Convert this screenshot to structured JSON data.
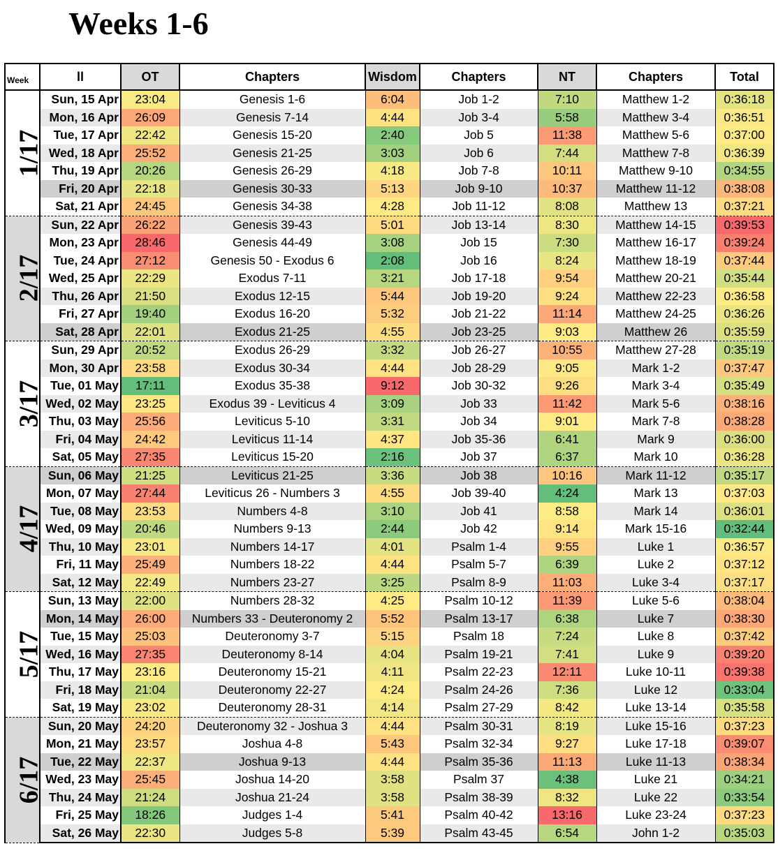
{
  "title": "Weeks 1-6",
  "headers": {
    "week": "Week",
    "day": "ll",
    "ot": "OT",
    "ot_chapters": "Chapters",
    "wisdom": "Wisdom",
    "wisdom_chapters": "Chapters",
    "nt": "NT",
    "nt_chapters": "Chapters",
    "total": "Total"
  },
  "colors": {
    "header_gray": "#d9d9d9",
    "row_shade_light": "#e9e9e9",
    "row_shade_dark": "#cfcfcf",
    "scale_green": "#63be7b",
    "scale_yellow": "#ffeb84",
    "scale_red": "#f8696b"
  },
  "weeks": [
    {
      "label": "1/17",
      "rows": [
        {
          "day": "Sun, 15 Apr",
          "ot": "23:04",
          "ot_ch": "Genesis 1-6",
          "wis": "6:04",
          "wis_ch": "Job 1-2",
          "nt": "7:10",
          "nt_ch": "Matthew 1-2",
          "total": "0:36:18",
          "shade": 0
        },
        {
          "day": "Mon, 16 Apr",
          "ot": "26:09",
          "ot_ch": "Genesis 7-14",
          "wis": "4:44",
          "wis_ch": "Job 3-4",
          "nt": "5:58",
          "nt_ch": "Matthew 3-4",
          "total": "0:36:51",
          "shade": 1
        },
        {
          "day": "Tue, 17 Apr",
          "ot": "22:42",
          "ot_ch": "Genesis 15-20",
          "wis": "2:40",
          "wis_ch": "Job 5",
          "nt": "11:38",
          "nt_ch": "Matthew 5-6",
          "total": "0:37:00",
          "shade": 0
        },
        {
          "day": "Wed, 18 Apr",
          "ot": "25:52",
          "ot_ch": "Genesis 21-25",
          "wis": "3:03",
          "wis_ch": "Job 6",
          "nt": "7:44",
          "nt_ch": "Matthew 7-8",
          "total": "0:36:39",
          "shade": 1
        },
        {
          "day": "Thu, 19 Apr",
          "ot": "20:26",
          "ot_ch": "Genesis 26-29",
          "wis": "4:18",
          "wis_ch": "Job 7-8",
          "nt": "10:11",
          "nt_ch": "Matthew 9-10",
          "total": "0:34:55",
          "shade": 0
        },
        {
          "day": "Fri, 20 Apr",
          "ot": "22:18",
          "ot_ch": "Genesis 30-33",
          "wis": "5:13",
          "wis_ch": "Job 9-10",
          "nt": "10:37",
          "nt_ch": "Matthew 11-12",
          "total": "0:38:08",
          "shade": 2
        },
        {
          "day": "Sat, 21 Apr",
          "ot": "24:45",
          "ot_ch": "Genesis 34-38",
          "wis": "4:28",
          "wis_ch": "Job 11-12",
          "nt": "8:08",
          "nt_ch": "Matthew 13",
          "total": "0:37:21",
          "shade": 0
        }
      ]
    },
    {
      "label": "2/17",
      "rows": [
        {
          "day": "Sun, 22 Apr",
          "ot": "26:22",
          "ot_ch": "Genesis 39-43",
          "wis": "5:01",
          "wis_ch": "Job 13-14",
          "nt": "8:30",
          "nt_ch": "Matthew 14-15",
          "total": "0:39:53",
          "shade": 1
        },
        {
          "day": "Mon, 23 Apr",
          "ot": "28:46",
          "ot_ch": "Genesis 44-49",
          "wis": "3:08",
          "wis_ch": "Job 15",
          "nt": "7:30",
          "nt_ch": "Matthew 16-17",
          "total": "0:39:24",
          "shade": 0
        },
        {
          "day": "Tue, 24 Apr",
          "ot": "27:12",
          "ot_ch": "Genesis 50 - Exodus 6",
          "wis": "2:08",
          "wis_ch": "Job 16",
          "nt": "8:24",
          "nt_ch": "Matthew 18-19",
          "total": "0:37:44",
          "shade": 0
        },
        {
          "day": "Wed, 25 Apr",
          "ot": "22:29",
          "ot_ch": "Exodus 7-11",
          "wis": "3:21",
          "wis_ch": "Job 17-18",
          "nt": "9:54",
          "nt_ch": "Matthew 20-21",
          "total": "0:35:44",
          "shade": 0
        },
        {
          "day": "Thu, 26 Apr",
          "ot": "21:50",
          "ot_ch": "Exodus 12-15",
          "wis": "5:44",
          "wis_ch": "Job 19-20",
          "nt": "9:24",
          "nt_ch": "Matthew 22-23",
          "total": "0:36:58",
          "shade": 1
        },
        {
          "day": "Fri, 27 Apr",
          "ot": "19:40",
          "ot_ch": "Exodus 16-20",
          "wis": "5:32",
          "wis_ch": "Job 21-22",
          "nt": "11:14",
          "nt_ch": "Matthew 24-25",
          "total": "0:36:26",
          "shade": 0
        },
        {
          "day": "Sat, 28 Apr",
          "ot": "22:01",
          "ot_ch": "Exodus 21-25",
          "wis": "4:55",
          "wis_ch": "Job 23-25",
          "nt": "9:03",
          "nt_ch": "Matthew 26",
          "total": "0:35:59",
          "shade": 2
        }
      ]
    },
    {
      "label": "3/17",
      "rows": [
        {
          "day": "Sun, 29 Apr",
          "ot": "20:52",
          "ot_ch": "Exodus 26-29",
          "wis": "3:32",
          "wis_ch": "Job 26-27",
          "nt": "10:55",
          "nt_ch": "Matthew 27-28",
          "total": "0:35:19",
          "shade": 0
        },
        {
          "day": "Mon, 30 Apr",
          "ot": "23:58",
          "ot_ch": "Exodus 30-34",
          "wis": "4:44",
          "wis_ch": "Job 28-29",
          "nt": "9:05",
          "nt_ch": "Mark 1-2",
          "total": "0:37:47",
          "shade": 1
        },
        {
          "day": "Tue, 01 May",
          "ot": "17:11",
          "ot_ch": "Exodus 35-38",
          "wis": "9:12",
          "wis_ch": "Job 30-32",
          "nt": "9:26",
          "nt_ch": "Mark 3-4",
          "total": "0:35:49",
          "shade": 0
        },
        {
          "day": "Wed, 02 May",
          "ot": "23:25",
          "ot_ch": "Exodus 39 - Leviticus 4",
          "wis": "3:09",
          "wis_ch": "Job 33",
          "nt": "11:42",
          "nt_ch": "Mark 5-6",
          "total": "0:38:16",
          "shade": 1
        },
        {
          "day": "Thu, 03 May",
          "ot": "25:56",
          "ot_ch": "Leviticus 5-10",
          "wis": "3:31",
          "wis_ch": "Job 34",
          "nt": "9:01",
          "nt_ch": "Mark 7-8",
          "total": "0:38:28",
          "shade": 0
        },
        {
          "day": "Fri, 04 May",
          "ot": "24:42",
          "ot_ch": "Leviticus 11-14",
          "wis": "4:37",
          "wis_ch": "Job 35-36",
          "nt": "6:41",
          "nt_ch": "Mark 9",
          "total": "0:36:00",
          "shade": 1
        },
        {
          "day": "Sat, 05 May",
          "ot": "27:35",
          "ot_ch": "Leviticus 15-20",
          "wis": "2:16",
          "wis_ch": "Job 37",
          "nt": "6:37",
          "nt_ch": "Mark 10",
          "total": "0:36:28",
          "shade": 0
        }
      ]
    },
    {
      "label": "4/17",
      "rows": [
        {
          "day": "Sun, 06 May",
          "ot": "21:25",
          "ot_ch": "Leviticus 21-25",
          "wis": "3:36",
          "wis_ch": "Job 38",
          "nt": "10:16",
          "nt_ch": "Mark 11-12",
          "total": "0:35:17",
          "shade": 2
        },
        {
          "day": "Mon, 07 May",
          "ot": "27:44",
          "ot_ch": "Leviticus 26 - Numbers 3",
          "wis": "4:55",
          "wis_ch": "Job 39-40",
          "nt": "4:24",
          "nt_ch": "Mark 13",
          "total": "0:37:03",
          "shade": 0
        },
        {
          "day": "Tue, 08 May",
          "ot": "23:53",
          "ot_ch": "Numbers 4-8",
          "wis": "3:10",
          "wis_ch": "Job 41",
          "nt": "8:58",
          "nt_ch": "Mark 14",
          "total": "0:36:01",
          "shade": 1
        },
        {
          "day": "Wed, 09 May",
          "ot": "20:46",
          "ot_ch": "Numbers 9-13",
          "wis": "2:44",
          "wis_ch": "Job 42",
          "nt": "9:14",
          "nt_ch": "Mark 15-16",
          "total": "0:32:44",
          "shade": 0
        },
        {
          "day": "Thu, 10 May",
          "ot": "23:01",
          "ot_ch": "Numbers 14-17",
          "wis": "4:01",
          "wis_ch": "Psalm 1-4",
          "nt": "9:55",
          "nt_ch": "Luke 1",
          "total": "0:36:57",
          "shade": 1
        },
        {
          "day": "Fri, 11 May",
          "ot": "25:49",
          "ot_ch": "Numbers 18-22",
          "wis": "4:44",
          "wis_ch": "Psalm 5-7",
          "nt": "6:39",
          "nt_ch": "Luke 2",
          "total": "0:37:12",
          "shade": 0
        },
        {
          "day": "Sat, 12 May",
          "ot": "22:49",
          "ot_ch": "Numbers 23-27",
          "wis": "3:25",
          "wis_ch": "Psalm 8-9",
          "nt": "11:03",
          "nt_ch": "Luke 3-4",
          "total": "0:37:17",
          "shade": 1
        }
      ]
    },
    {
      "label": "5/17",
      "rows": [
        {
          "day": "Sun, 13 May",
          "ot": "22:00",
          "ot_ch": "Numbers 28-32",
          "wis": "4:25",
          "wis_ch": "Psalm 10-12",
          "nt": "11:39",
          "nt_ch": "Luke 5-6",
          "total": "0:38:04",
          "shade": 0
        },
        {
          "day": "Mon, 14 May",
          "ot": "26:00",
          "ot_ch": "Numbers 33 - Deuteronomy 2",
          "wis": "5:52",
          "wis_ch": "Psalm 13-17",
          "nt": "6:38",
          "nt_ch": "Luke 7",
          "total": "0:38:30",
          "shade": 2
        },
        {
          "day": "Tue, 15 May",
          "ot": "25:03",
          "ot_ch": "Deuteronomy 3-7",
          "wis": "5:15",
          "wis_ch": "Psalm 18",
          "nt": "7:24",
          "nt_ch": "Luke 8",
          "total": "0:37:42",
          "shade": 0
        },
        {
          "day": "Wed, 16 May",
          "ot": "27:35",
          "ot_ch": "Deuteronomy 8-14",
          "wis": "4:04",
          "wis_ch": "Psalm 19-21",
          "nt": "7:41",
          "nt_ch": "Luke 9",
          "total": "0:39:20",
          "shade": 1
        },
        {
          "day": "Thu, 17 May",
          "ot": "23:16",
          "ot_ch": "Deuteronomy 15-21",
          "wis": "4:11",
          "wis_ch": "Psalm 22-23",
          "nt": "12:11",
          "nt_ch": "Luke 10-11",
          "total": "0:39:38",
          "shade": 0
        },
        {
          "day": "Fri, 18 May",
          "ot": "21:04",
          "ot_ch": "Deuteronomy 22-27",
          "wis": "4:24",
          "wis_ch": "Psalm 24-26",
          "nt": "7:36",
          "nt_ch": "Luke 12",
          "total": "0:33:04",
          "shade": 1
        },
        {
          "day": "Sat, 19 May",
          "ot": "23:02",
          "ot_ch": "Deuteronomy 28-31",
          "wis": "4:14",
          "wis_ch": "Psalm 27-29",
          "nt": "8:42",
          "nt_ch": "Luke 13-14",
          "total": "0:35:58",
          "shade": 0
        }
      ]
    },
    {
      "label": "6/17",
      "rows": [
        {
          "day": "Sun, 20 May",
          "ot": "24:20",
          "ot_ch": "Deuteronomy 32 - Joshua 3",
          "wis": "4:44",
          "wis_ch": "Psalm 30-31",
          "nt": "8:19",
          "nt_ch": "Luke 15-16",
          "total": "0:37:23",
          "shade": 1
        },
        {
          "day": "Mon, 21 May",
          "ot": "23:57",
          "ot_ch": "Joshua 4-8",
          "wis": "5:43",
          "wis_ch": "Psalm 32-34",
          "nt": "9:27",
          "nt_ch": "Luke 17-18",
          "total": "0:39:07",
          "shade": 0
        },
        {
          "day": "Tue, 22 May",
          "ot": "22:37",
          "ot_ch": "Joshua 9-13",
          "wis": "4:44",
          "wis_ch": "Psalm 35-36",
          "nt": "11:13",
          "nt_ch": "Luke 11-13",
          "total": "0:38:34",
          "shade": 2
        },
        {
          "day": "Wed, 23 May",
          "ot": "25:45",
          "ot_ch": "Joshua 14-20",
          "wis": "3:58",
          "wis_ch": "Psalm 37",
          "nt": "4:38",
          "nt_ch": "Luke 21",
          "total": "0:34:21",
          "shade": 0
        },
        {
          "day": "Thu, 24 May",
          "ot": "21:24",
          "ot_ch": "Joshua 21-24",
          "wis": "3:58",
          "wis_ch": "Psalm 38-39",
          "nt": "8:32",
          "nt_ch": "Luke 22",
          "total": "0:33:54",
          "shade": 1
        },
        {
          "day": "Fri, 25 May",
          "ot": "18:26",
          "ot_ch": "Judges 1-4",
          "wis": "5:41",
          "wis_ch": "Psalm 40-42",
          "nt": "13:16",
          "nt_ch": "Luke 23-24",
          "total": "0:37:23",
          "shade": 0
        },
        {
          "day": "Sat, 26 May",
          "ot": "22:30",
          "ot_ch": "Judges 5-8",
          "wis": "5:39",
          "wis_ch": "Psalm 43-45",
          "nt": "6:54",
          "nt_ch": "John 1-2",
          "total": "0:35:03",
          "shade": 1
        }
      ]
    }
  ]
}
